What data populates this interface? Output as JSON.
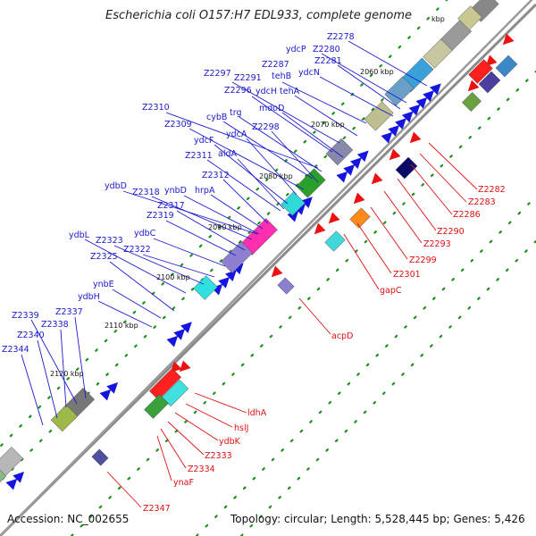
{
  "title": "Escherichia coli O157:H7 EDL933, complete genome",
  "title_kbp_fragment": "kbp",
  "footer": {
    "accession": "Accession: NC_002655",
    "summary": "Topology: circular; Length: 5,528,445 bp; Genes: 5,426"
  },
  "colors": {
    "forward_label": "#1a1acc",
    "reverse_label": "#dd1111",
    "backbone": "#8c8c8c",
    "forward_arrow": "#1515e0",
    "reverse_arrow": "#ee1111",
    "dot": "#1f8f1f"
  },
  "kbp_ticks": [
    "2060 kbp",
    "2070 kbp",
    "2080 kbp",
    "2090 kbp",
    "2100 kbp",
    "2110 kbp",
    "2120 kbp"
  ],
  "forward_labels": [
    "Z2278",
    "ydcP",
    "Z2280",
    "Z2281",
    "ydcN",
    "Z2287",
    "tehB",
    "tehA",
    "Z2297",
    "Z2291",
    "ydcH",
    "Z2296",
    "mdoD",
    "Z2310",
    "trg",
    "cybB",
    "Z2298",
    "Z2309",
    "ydcA",
    "ydcF",
    "Z2311",
    "aldA",
    "Z2312",
    "ydbD",
    "Z2318",
    "ynbD",
    "hrpA",
    "Z2317",
    "Z2319",
    "ydbC",
    "ydbL",
    "Z2323",
    "Z2322",
    "Z2325",
    "ynbE",
    "ydbH",
    "Z2339",
    "Z2337",
    "Z2338",
    "Z2340",
    "Z2344"
  ],
  "reverse_labels": [
    "Z2282",
    "Z2283",
    "Z2286",
    "Z2290",
    "Z2293",
    "Z2299",
    "Z2301",
    "gapC",
    "acpD",
    "ldhA",
    "hslJ",
    "ydbK",
    "Z2333",
    "Z2334",
    "ynaF",
    "Z2347"
  ]
}
